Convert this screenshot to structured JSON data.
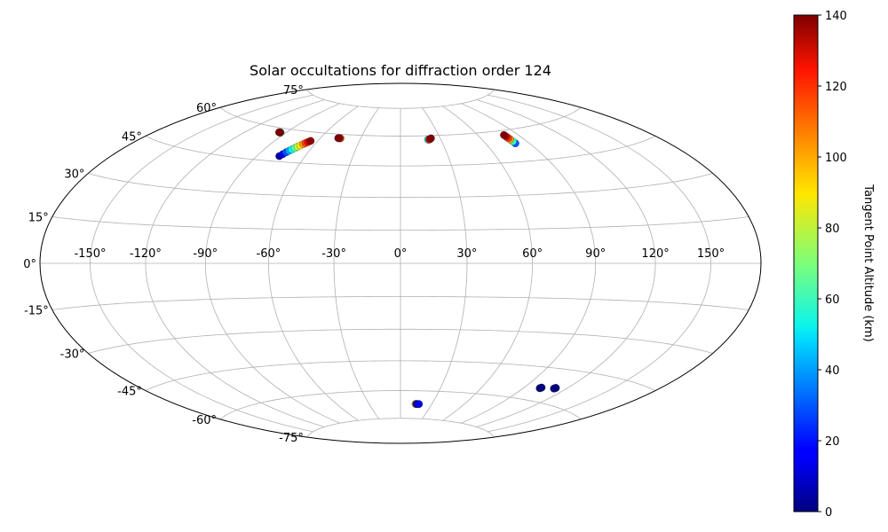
{
  "chart_data": {
    "type": "scatter",
    "projection": "hammer",
    "title": "Solar occultations for diffraction order 124",
    "lon_ticks": [
      -150,
      -120,
      -90,
      -60,
      -30,
      0,
      30,
      60,
      90,
      120,
      150
    ],
    "lat_ticks": [
      -75,
      -60,
      -45,
      -30,
      -15,
      0,
      15,
      30,
      45,
      60,
      75
    ],
    "lon_tick_labels": [
      "-150°",
      "-120°",
      "-90°",
      "-60°",
      "-30°",
      "0°",
      "30°",
      "60°",
      "90°",
      "120°",
      "150°"
    ],
    "lat_tick_labels": [
      "-75°",
      "-60°",
      "-45°",
      "-30°",
      "-15°",
      "0°",
      "15°",
      "30°",
      "45°",
      "60°",
      "75°"
    ],
    "grid": true,
    "colorbar": {
      "label": "Tangent Point Altitude (km)",
      "colormap": "jet",
      "range": [
        0,
        140
      ],
      "ticks": [
        0,
        20,
        40,
        60,
        80,
        100,
        120,
        140
      ],
      "tick_labels": [
        "0",
        "20",
        "40",
        "60",
        "80",
        "100",
        "120",
        "140"
      ]
    },
    "tracks": [
      {
        "lon": [
          -94.2,
          -94.4,
          -94.6,
          -94.8,
          -95.0,
          -95.2,
          -95.4
        ],
        "lat": [
          58.0,
          58.0,
          58.0,
          58.0,
          58.0,
          58.0,
          58.0
        ],
        "alt": [
          60,
          40,
          140,
          130,
          120,
          135,
          140
        ]
      },
      {
        "lon": [
          -76.0,
          -75.0,
          -74.0,
          -73.0,
          -72.0,
          -71.0,
          -70.0,
          -69.0,
          -68.0,
          -67.0,
          -66.0,
          -65.0
        ],
        "lat": [
          47.5,
          48.5,
          49.5,
          50.3,
          51.0,
          51.8,
          52.5,
          53.2,
          53.9,
          54.5,
          55.1,
          55.7
        ],
        "alt": [
          5,
          15,
          28,
          40,
          52,
          65,
          78,
          90,
          102,
          114,
          126,
          138
        ]
      },
      {
        "lon": [
          -45.0,
          -45.6,
          -46.2,
          -46.8
        ],
        "lat": [
          58.0,
          58.0,
          58.0,
          58.0
        ],
        "alt": [
          100,
          120,
          135,
          140
        ]
      },
      {
        "lon": [
          20.5,
          21.4,
          22.3,
          23.0
        ],
        "lat": [
          58.0,
          58.0,
          58.3,
          58.6
        ],
        "alt": [
          50,
          120,
          130,
          140
        ]
      },
      {
        "lon": [
          80.5,
          80.3,
          80.1,
          79.9,
          79.7,
          79.5
        ],
        "lat": [
          53.5,
          54.5,
          55.5,
          56.2,
          57.0,
          57.8
        ],
        "alt": [
          30,
          60,
          100,
          115,
          130,
          140
        ]
      },
      {
        "lon": [
          14.5,
          15.3,
          16.1,
          16.9,
          17.7
        ],
        "lat": [
          -67.0,
          -67.0,
          -67.0,
          -67.0,
          -67.0
        ],
        "alt": [
          100,
          10,
          20,
          5,
          15
        ]
      },
      {
        "lon": [
          101.5,
          101.8,
          102.1
        ],
        "lat": [
          -54.3,
          -54.1,
          -53.9
        ],
        "alt": [
          5,
          2,
          0
        ]
      },
      {
        "lon": [
          111.5,
          111.8,
          112.1
        ],
        "lat": [
          -53.5,
          -53.3,
          -53.1
        ],
        "alt": [
          5,
          2,
          0
        ]
      }
    ]
  }
}
